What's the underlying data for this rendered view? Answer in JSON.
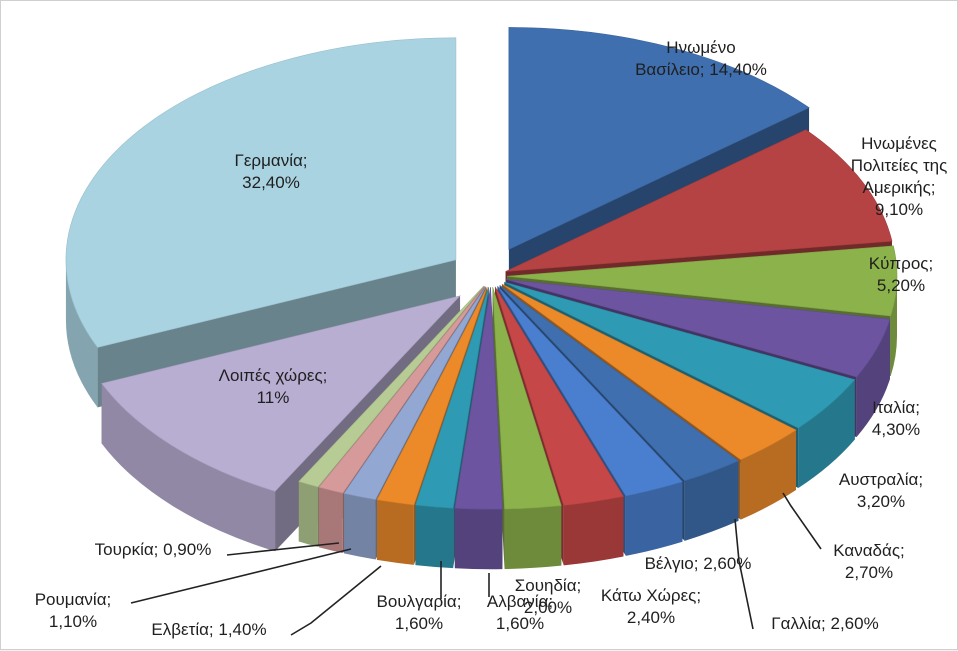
{
  "chart_data": {
    "type": "pie",
    "style": "3d-exploded",
    "title": "",
    "legend": "none",
    "slices": [
      {
        "label": "Ηνωμένο Βασίλειο",
        "value": 14.4,
        "text": "Ηνωμένο Βασίλειο; 14,40%",
        "color": "#3f6fae"
      },
      {
        "label": "Ηνωμένες Πολιτείες της Αμερικής",
        "value": 9.1,
        "text": "Ηνωμένες Πολιτείες της Αμερικής; 9,10%",
        "color": "#b54343"
      },
      {
        "label": "Κύπρος",
        "value": 5.2,
        "text": "Κύπρος; 5,20%",
        "color": "#8cb24b"
      },
      {
        "label": "",
        "value": 4.5,
        "text": "",
        "color": "#6c54a0"
      },
      {
        "label": "Ιταλία",
        "value": 4.3,
        "text": "Ιταλία; 4,30%",
        "color": "#2f9ab3"
      },
      {
        "label": "Αυστραλία",
        "value": 3.2,
        "text": "Αυστραλία; 3,20%",
        "color": "#ec8a2a"
      },
      {
        "label": "Καναδάς",
        "value": 2.7,
        "text": "Καναδάς; 2,70%",
        "color": "#3f6fae"
      },
      {
        "label": "Γαλλία",
        "value": 2.6,
        "text": "Γαλλία; 2,60%",
        "color": "#4a7fd0"
      },
      {
        "label": "Βέλγιο",
        "value": 2.6,
        "text": "Βέλγιο; 2,60%",
        "color": "#c64747"
      },
      {
        "label": "Κάτω Χώρες",
        "value": 2.4,
        "text": "Κάτω Χώρες; 2,40%",
        "color": "#8cb24b"
      },
      {
        "label": "Σουηδία",
        "value": 2.0,
        "text": "Σουηδία; 2,00%",
        "color": "#6c54a0"
      },
      {
        "label": "Αλβανία",
        "value": 1.6,
        "text": "Αλβανία; 1,60%",
        "color": "#2f9ab3"
      },
      {
        "label": "Βουλγαρία",
        "value": 1.6,
        "text": "Βουλγαρία; 1,60%",
        "color": "#ec8a2a"
      },
      {
        "label": "Ελβετία",
        "value": 1.4,
        "text": "Ελβετία; 1,40%",
        "color": "#92a8d2"
      },
      {
        "label": "Ρουμανία",
        "value": 1.1,
        "text": "Ρουμανία; 1,10%",
        "color": "#d79a9a"
      },
      {
        "label": "Τουρκία",
        "value": 0.9,
        "text": "Τουρκία; 0,90%",
        "color": "#b6cc94"
      },
      {
        "label": "Λοιπές χώρες",
        "value": 11.0,
        "text": "Λοιπές χώρες; 11%",
        "color": "#b8aed2"
      },
      {
        "label": "Γερμανία",
        "value": 32.4,
        "text": "Γερμανία; 32,40%",
        "color": "#a9d3e1"
      }
    ]
  }
}
